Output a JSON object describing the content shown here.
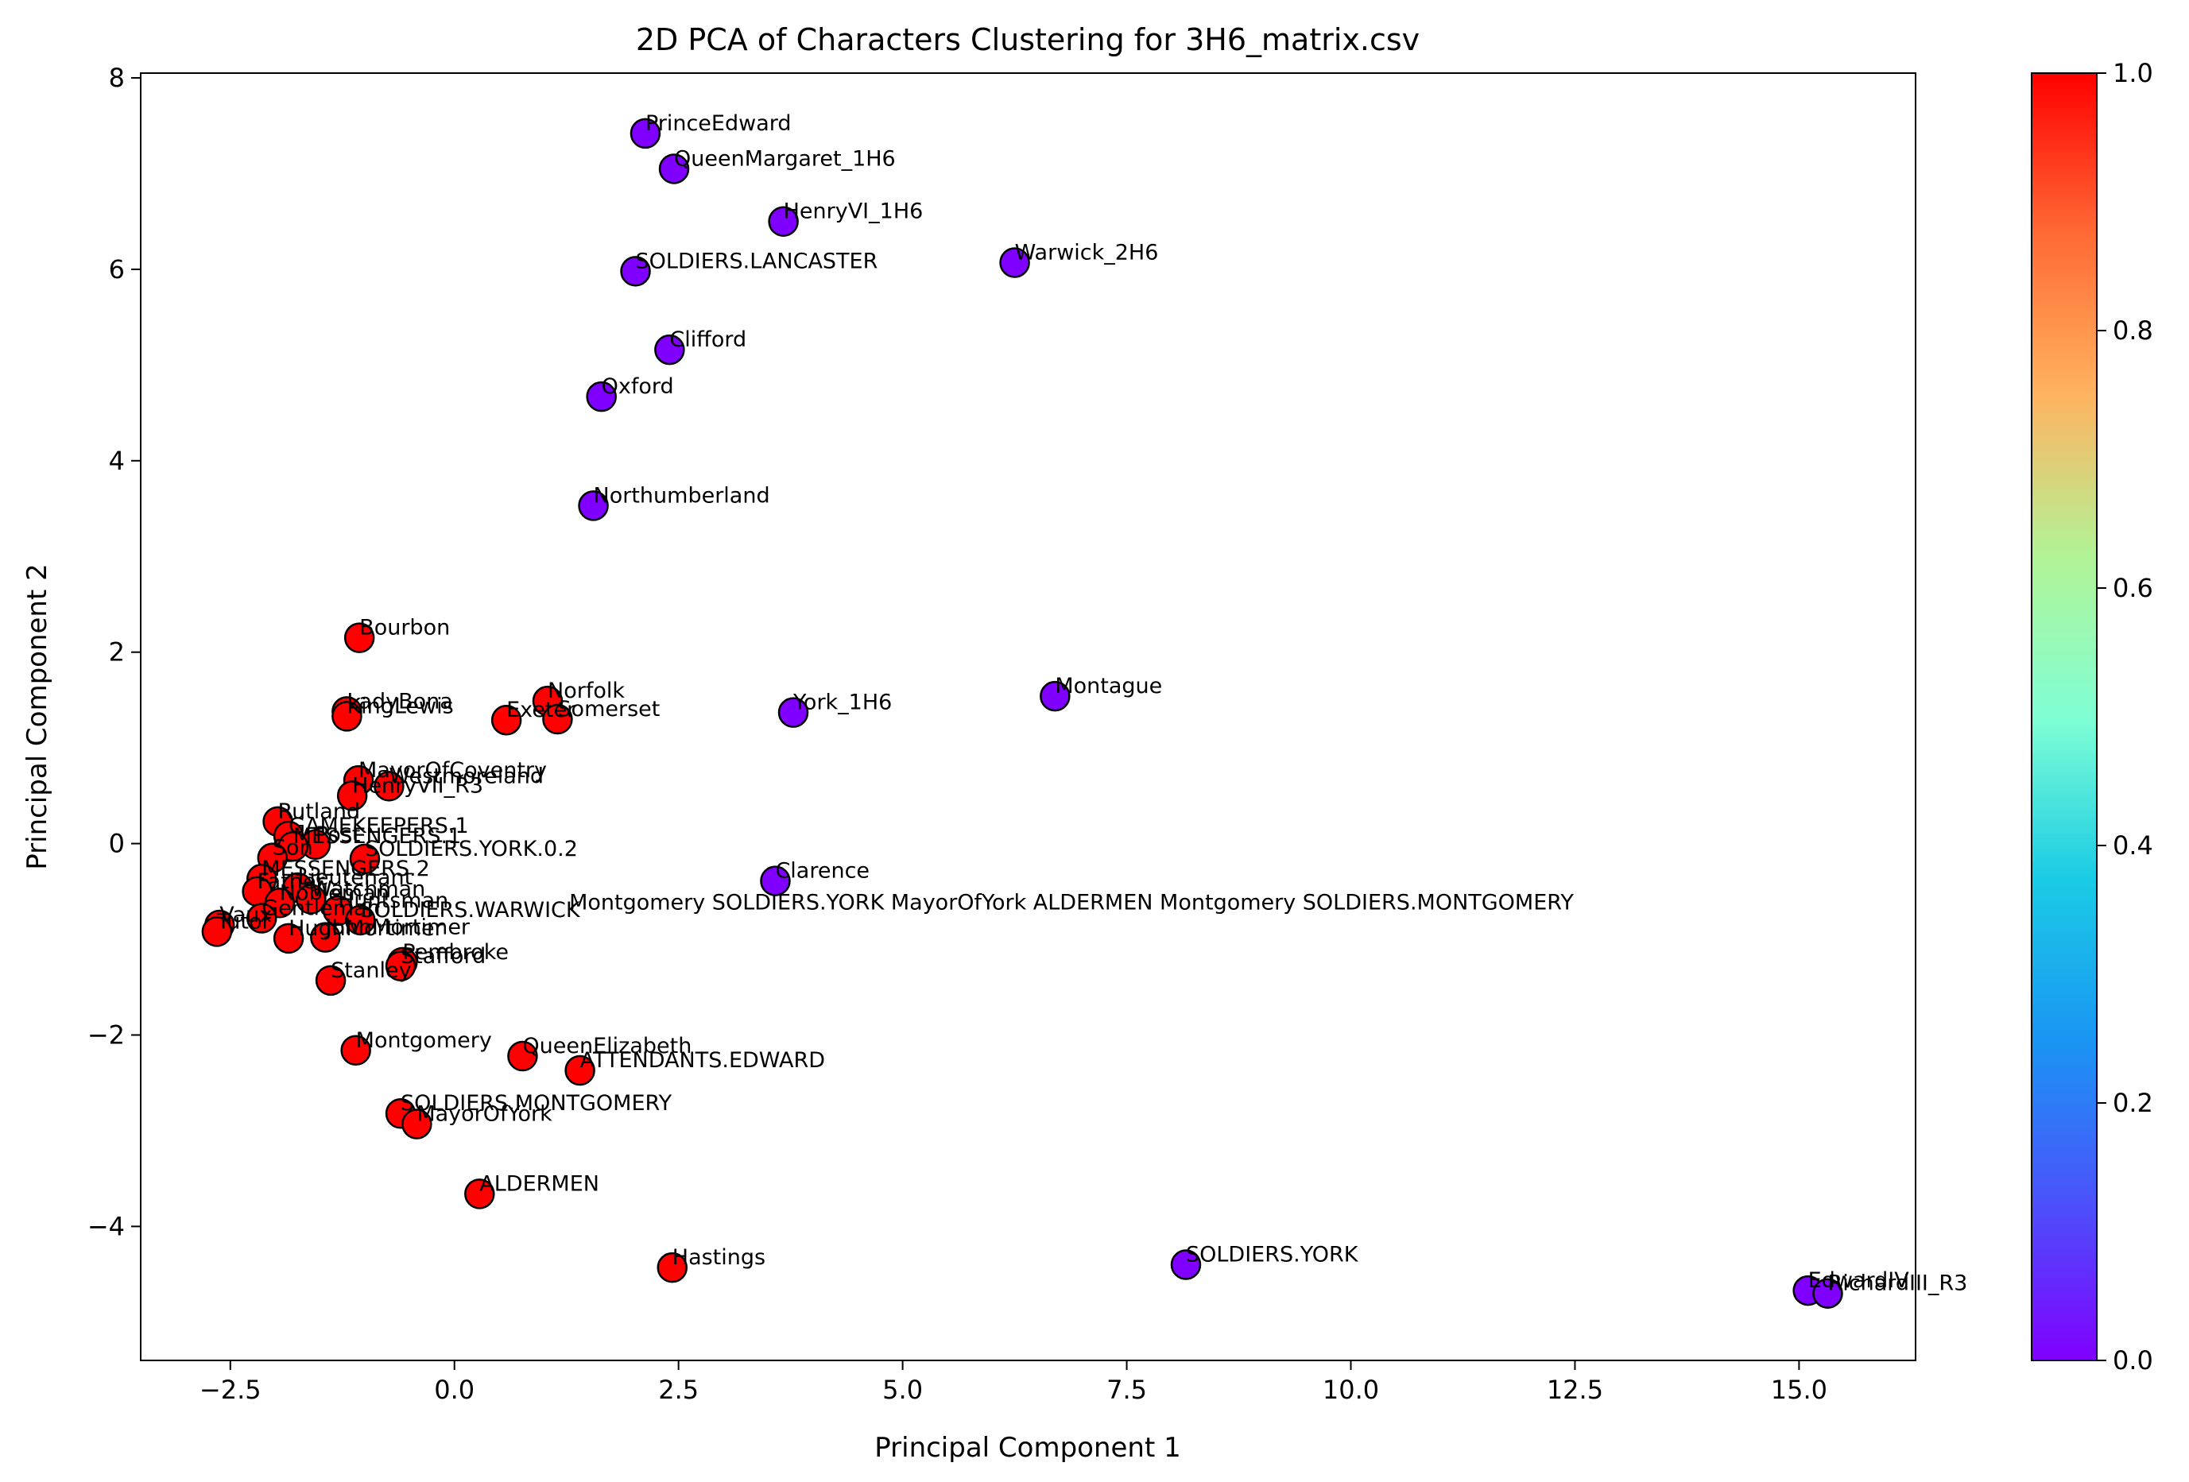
{
  "chart_data": {
    "type": "scatter",
    "title": "2D PCA of Characters Clustering for 3H6_matrix.csv",
    "xlabel": "Principal Component 1",
    "ylabel": "Principal Component 2",
    "xlim": [
      -3.5,
      16.3
    ],
    "ylim": [
      -5.4,
      8.05
    ],
    "xticks": [
      -2.5,
      0.0,
      2.5,
      5.0,
      7.5,
      10.0,
      12.5,
      15.0
    ],
    "yticks": [
      -4,
      -2,
      0,
      2,
      4,
      6,
      8
    ],
    "xtick_labels": [
      "−2.5",
      "0.0",
      "2.5",
      "5.0",
      "7.5",
      "10.0",
      "12.5",
      "15.0"
    ],
    "ytick_labels": [
      "−4",
      "−2",
      "0",
      "2",
      "4",
      "6",
      "8"
    ],
    "grid": false,
    "colorbar": {
      "colormap": "rainbow",
      "range": [
        0,
        1
      ],
      "ticks": [
        0.0,
        0.2,
        0.4,
        0.6,
        0.8,
        1.0
      ],
      "tick_labels": [
        "0.0",
        "0.2",
        "0.4",
        "0.6",
        "0.8",
        "1.0"
      ]
    },
    "colors": {
      "cluster_0": "#8000ff",
      "cluster_1": "#ff0000",
      "edge": "#000000"
    },
    "points": [
      {
        "label": "PrinceEdward",
        "x": 2.13,
        "y": 7.42,
        "c": 0
      },
      {
        "label": "QueenMargaret_1H6",
        "x": 2.45,
        "y": 7.05,
        "c": 0
      },
      {
        "label": "HenryVI_1H6",
        "x": 3.67,
        "y": 6.5,
        "c": 0
      },
      {
        "label": "SOLDIERS.LANCASTER",
        "x": 2.02,
        "y": 5.98,
        "c": 0
      },
      {
        "label": "Warwick_2H6",
        "x": 6.25,
        "y": 6.07,
        "c": 0
      },
      {
        "label": "Clifford",
        "x": 2.4,
        "y": 5.16,
        "c": 0
      },
      {
        "label": "Oxford",
        "x": 1.64,
        "y": 4.67,
        "c": 0
      },
      {
        "label": "Northumberland",
        "x": 1.55,
        "y": 3.53,
        "c": 0
      },
      {
        "label": "York_1H6",
        "x": 3.78,
        "y": 1.37,
        "c": 0
      },
      {
        "label": "Montague",
        "x": 6.7,
        "y": 1.54,
        "c": 0
      },
      {
        "label": "Clarence",
        "x": 3.58,
        "y": -0.39,
        "c": 0
      },
      {
        "label": "SOLDIERS.YORK",
        "x": 8.16,
        "y": -4.4,
        "c": 0
      },
      {
        "label": "EdwardIV",
        "x": 15.1,
        "y": -4.67,
        "c": 0
      },
      {
        "label": "RichardIII_R3",
        "x": 15.32,
        "y": -4.7,
        "c": 0
      },
      {
        "label": "Bourbon",
        "x": -1.06,
        "y": 2.15,
        "c": 1
      },
      {
        "label": "LadyBona",
        "x": -1.2,
        "y": 1.38,
        "c": 1
      },
      {
        "label": "KingLewis",
        "x": -1.2,
        "y": 1.33,
        "c": 1
      },
      {
        "label": "Norfolk",
        "x": 1.04,
        "y": 1.49,
        "c": 1
      },
      {
        "label": "Exeter",
        "x": 0.58,
        "y": 1.29,
        "c": 1
      },
      {
        "label": "Somerset",
        "x": 1.15,
        "y": 1.3,
        "c": 1
      },
      {
        "label": "MayorOfCoventry",
        "x": -1.07,
        "y": 0.66,
        "c": 1
      },
      {
        "label": "Westmoreland",
        "x": -0.73,
        "y": 0.6,
        "c": 1
      },
      {
        "label": "HenryVII_R3",
        "x": -1.14,
        "y": 0.5,
        "c": 1
      },
      {
        "label": "Rutland",
        "x": -1.97,
        "y": 0.23,
        "c": 1
      },
      {
        "label": "GAMEKEEPERS.1",
        "x": -1.85,
        "y": 0.08,
        "c": 1
      },
      {
        "label": "Post",
        "x": -1.55,
        "y": -0.01,
        "c": 1
      },
      {
        "label": "MESSENGERS.1",
        "x": -1.8,
        "y": -0.03,
        "c": 1
      },
      {
        "label": "Son",
        "x": -2.03,
        "y": -0.15,
        "c": 1
      },
      {
        "label": "SOLDIERS.YORK.0.2",
        "x": -1.0,
        "y": -0.16,
        "c": 1
      },
      {
        "label": "MESSENGERS.2",
        "x": -2.15,
        "y": -0.37,
        "c": 1
      },
      {
        "label": "Lieutenant",
        "x": -1.75,
        "y": -0.46,
        "c": 1
      },
      {
        "label": "Father",
        "x": -2.2,
        "y": -0.5,
        "c": 1
      },
      {
        "label": "Watchman",
        "x": -1.6,
        "y": -0.58,
        "c": 1
      },
      {
        "label": "Nobleman",
        "x": -1.95,
        "y": -0.62,
        "c": 1
      },
      {
        "label": "Huntsman",
        "x": -1.3,
        "y": -0.7,
        "c": 1
      },
      {
        "label": "SOLDIERS.WARWICK",
        "x": -1.05,
        "y": -0.8,
        "c": 1
      },
      {
        "label": "Vaux",
        "x": -2.62,
        "y": -0.85,
        "c": 1
      },
      {
        "label": "Tutor",
        "x": -2.65,
        "y": -0.92,
        "c": 1
      },
      {
        "label": "Gentleman",
        "x": -2.15,
        "y": -0.78,
        "c": 1
      },
      {
        "label": "HughMortimer",
        "x": -1.85,
        "y": -0.99,
        "c": 1
      },
      {
        "label": "JohnMortimer",
        "x": -1.44,
        "y": -0.98,
        "c": 1
      },
      {
        "label": "Pembroke",
        "x": -0.58,
        "y": -1.24,
        "c": 1
      },
      {
        "label": "Stafford",
        "x": -0.6,
        "y": -1.28,
        "c": 1
      },
      {
        "label": "Stanley",
        "x": -1.38,
        "y": -1.43,
        "c": 1
      },
      {
        "label": "Montgomery",
        "x": -1.1,
        "y": -2.16,
        "c": 1
      },
      {
        "label": "QueenElizabeth",
        "x": 0.76,
        "y": -2.22,
        "c": 1
      },
      {
        "label": "ATTENDANTS.EDWARD",
        "x": 1.4,
        "y": -2.37,
        "c": 1
      },
      {
        "label": "SOLDIERS.MONTGOMERY",
        "x": -0.6,
        "y": -2.82,
        "c": 1
      },
      {
        "label": "MayorOfYork",
        "x": -0.42,
        "y": -2.93,
        "c": 1
      },
      {
        "label": "ALDERMEN",
        "x": 0.28,
        "y": -3.66,
        "c": 1
      },
      {
        "label": "Hastings",
        "x": 2.43,
        "y": -4.43,
        "c": 1
      }
    ],
    "overlap_annotation": {
      "text": "Montgomery SOLDIERS.YORK MayorOfYork ALDERMEN Montgomery SOLDIERS.MONTGOMERY",
      "x": 1.28,
      "y": -0.72
    }
  }
}
